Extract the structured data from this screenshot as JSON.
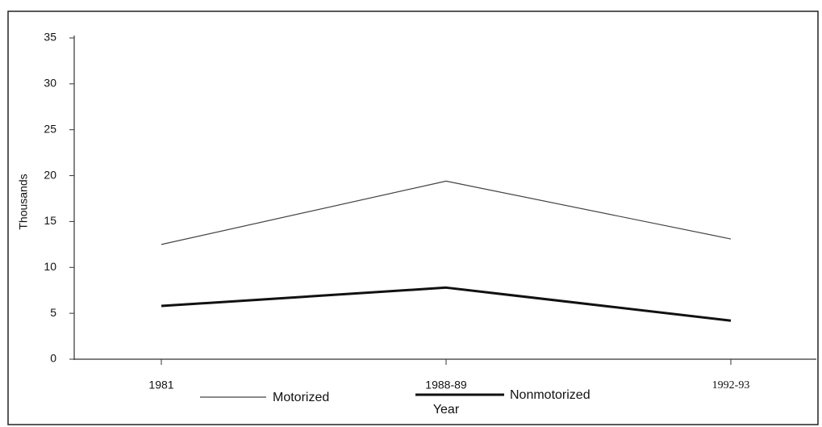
{
  "chart_data": {
    "type": "line",
    "categories": [
      "1981",
      "1988-89",
      "1992-93"
    ],
    "series": [
      {
        "name": "Motorized",
        "color": "#444444",
        "width": 1.2,
        "values": [
          12.5,
          19.4,
          13.1
        ]
      },
      {
        "name": "Nonmotorized",
        "color": "#111111",
        "width": 3,
        "values": [
          5.8,
          7.8,
          4.2
        ]
      }
    ],
    "ylim": [
      0,
      35
    ],
    "yticks": [
      0,
      5,
      10,
      15,
      20,
      25,
      30,
      35
    ],
    "ylabel": "Thousands",
    "xlabel": "Year",
    "grid": false
  }
}
